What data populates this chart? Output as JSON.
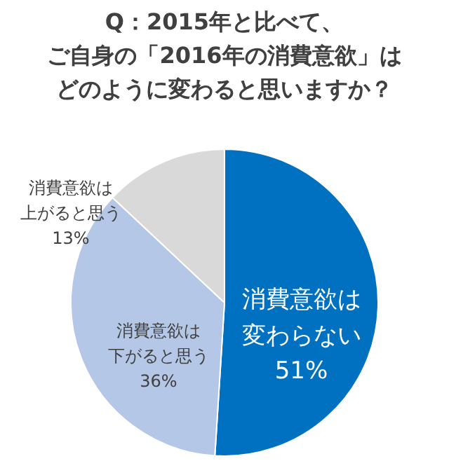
{
  "chart_data": {
    "type": "pie",
    "title": "Q：2015年と比べて、ご自身の「2016年の消費意欲」はどのように変わると思いますか？",
    "categories": [
      "消費意欲は変わらない",
      "消費意欲は下がると思う",
      "消費意欲は上がると思う"
    ],
    "values": [
      51,
      36,
      13
    ],
    "colors": [
      "#0070c0",
      "#b4c7e7",
      "#d9d9d9"
    ],
    "value_labels": [
      "51%",
      "36%",
      "13%"
    ],
    "legend": false
  }
}
